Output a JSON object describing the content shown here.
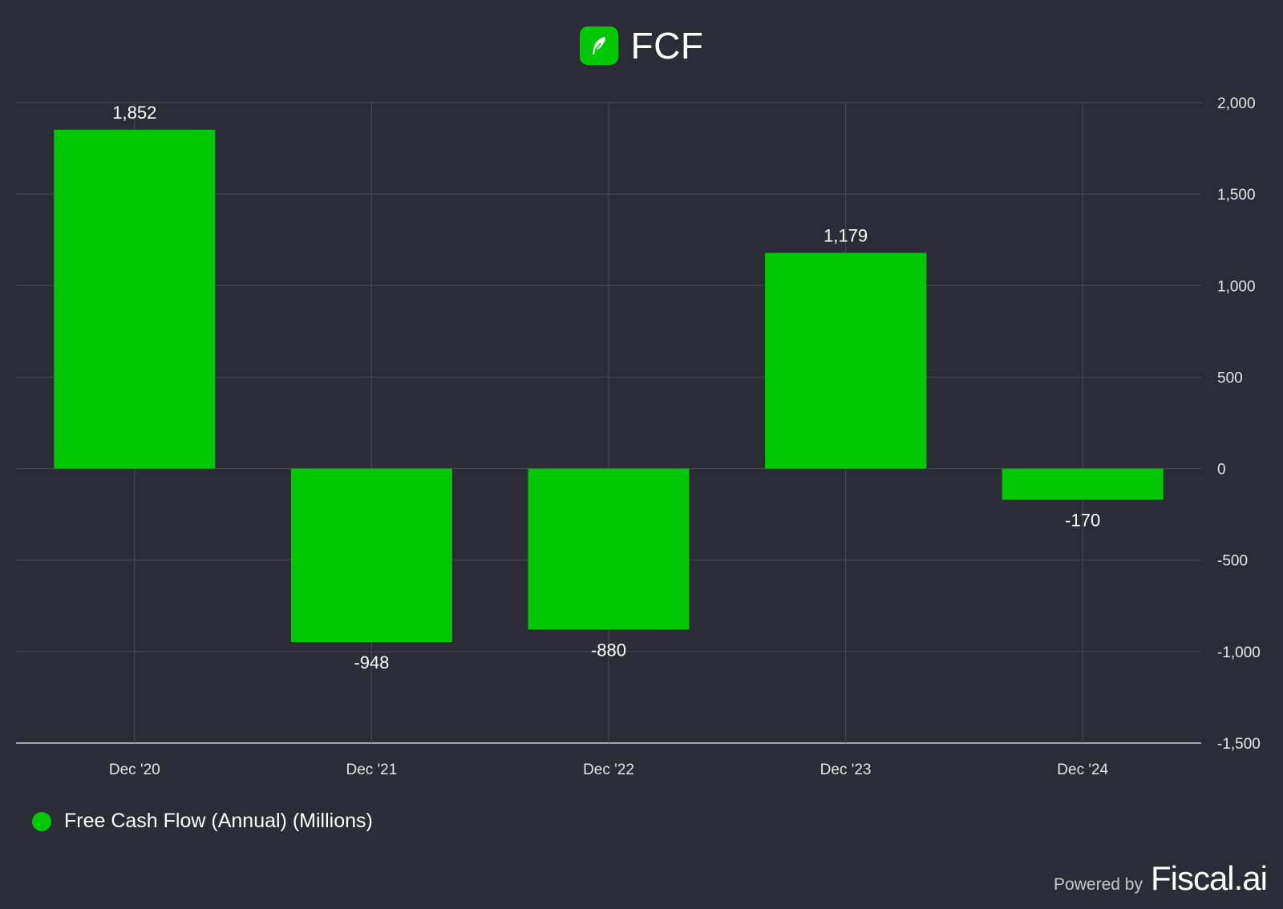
{
  "header": {
    "title": "FCF",
    "logo_icon": "feather-icon"
  },
  "colors": {
    "bar": "#00c805",
    "background": "#2b2c35",
    "grid": "#4a4b55",
    "axis": "#cfcfd4"
  },
  "chart_data": {
    "type": "bar",
    "title": "FCF",
    "categories": [
      "Dec '20",
      "Dec '21",
      "Dec '22",
      "Dec '23",
      "Dec '24"
    ],
    "series": [
      {
        "name": "Free Cash Flow (Annual) (Millions)",
        "values": [
          1852,
          -948,
          -880,
          1179,
          -170
        ]
      }
    ],
    "data_labels": [
      "1,852",
      "-948",
      "-880",
      "1,179",
      "-170"
    ],
    "ylim": [
      -1500,
      2000
    ],
    "yticks": [
      2000,
      1500,
      1000,
      500,
      0,
      -500,
      -1000,
      -1500
    ],
    "ytick_labels": [
      "2,000",
      "1,500",
      "1,000",
      "500",
      "0",
      "-500",
      "-1,000",
      "-1,500"
    ],
    "y_axis_side": "right",
    "grid": true,
    "legend_position": "bottom-left"
  },
  "footer": {
    "powered_by": "Powered by",
    "brand": "Fiscal.ai"
  }
}
